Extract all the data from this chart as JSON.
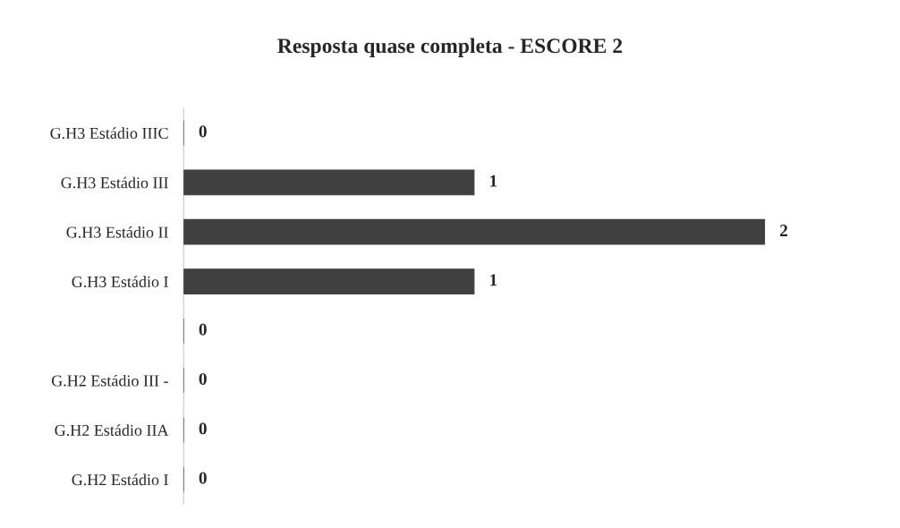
{
  "chart_data": {
    "type": "bar",
    "title": "Resposta quase completa - ESCORE 2",
    "orientation": "horizontal",
    "categories": [
      "G.H3 Estádio IIIC",
      "G.H3 Estádio III",
      "G.H3 Estádio II",
      "G.H3 Estádio I",
      null,
      "G.H2 Estádio III -",
      "G.H2 Estádio IIA",
      "G.H2 Estádio I"
    ],
    "values": [
      0,
      1,
      2,
      1,
      0,
      0,
      0,
      0
    ],
    "color": "#404040",
    "data_labels": true
  }
}
